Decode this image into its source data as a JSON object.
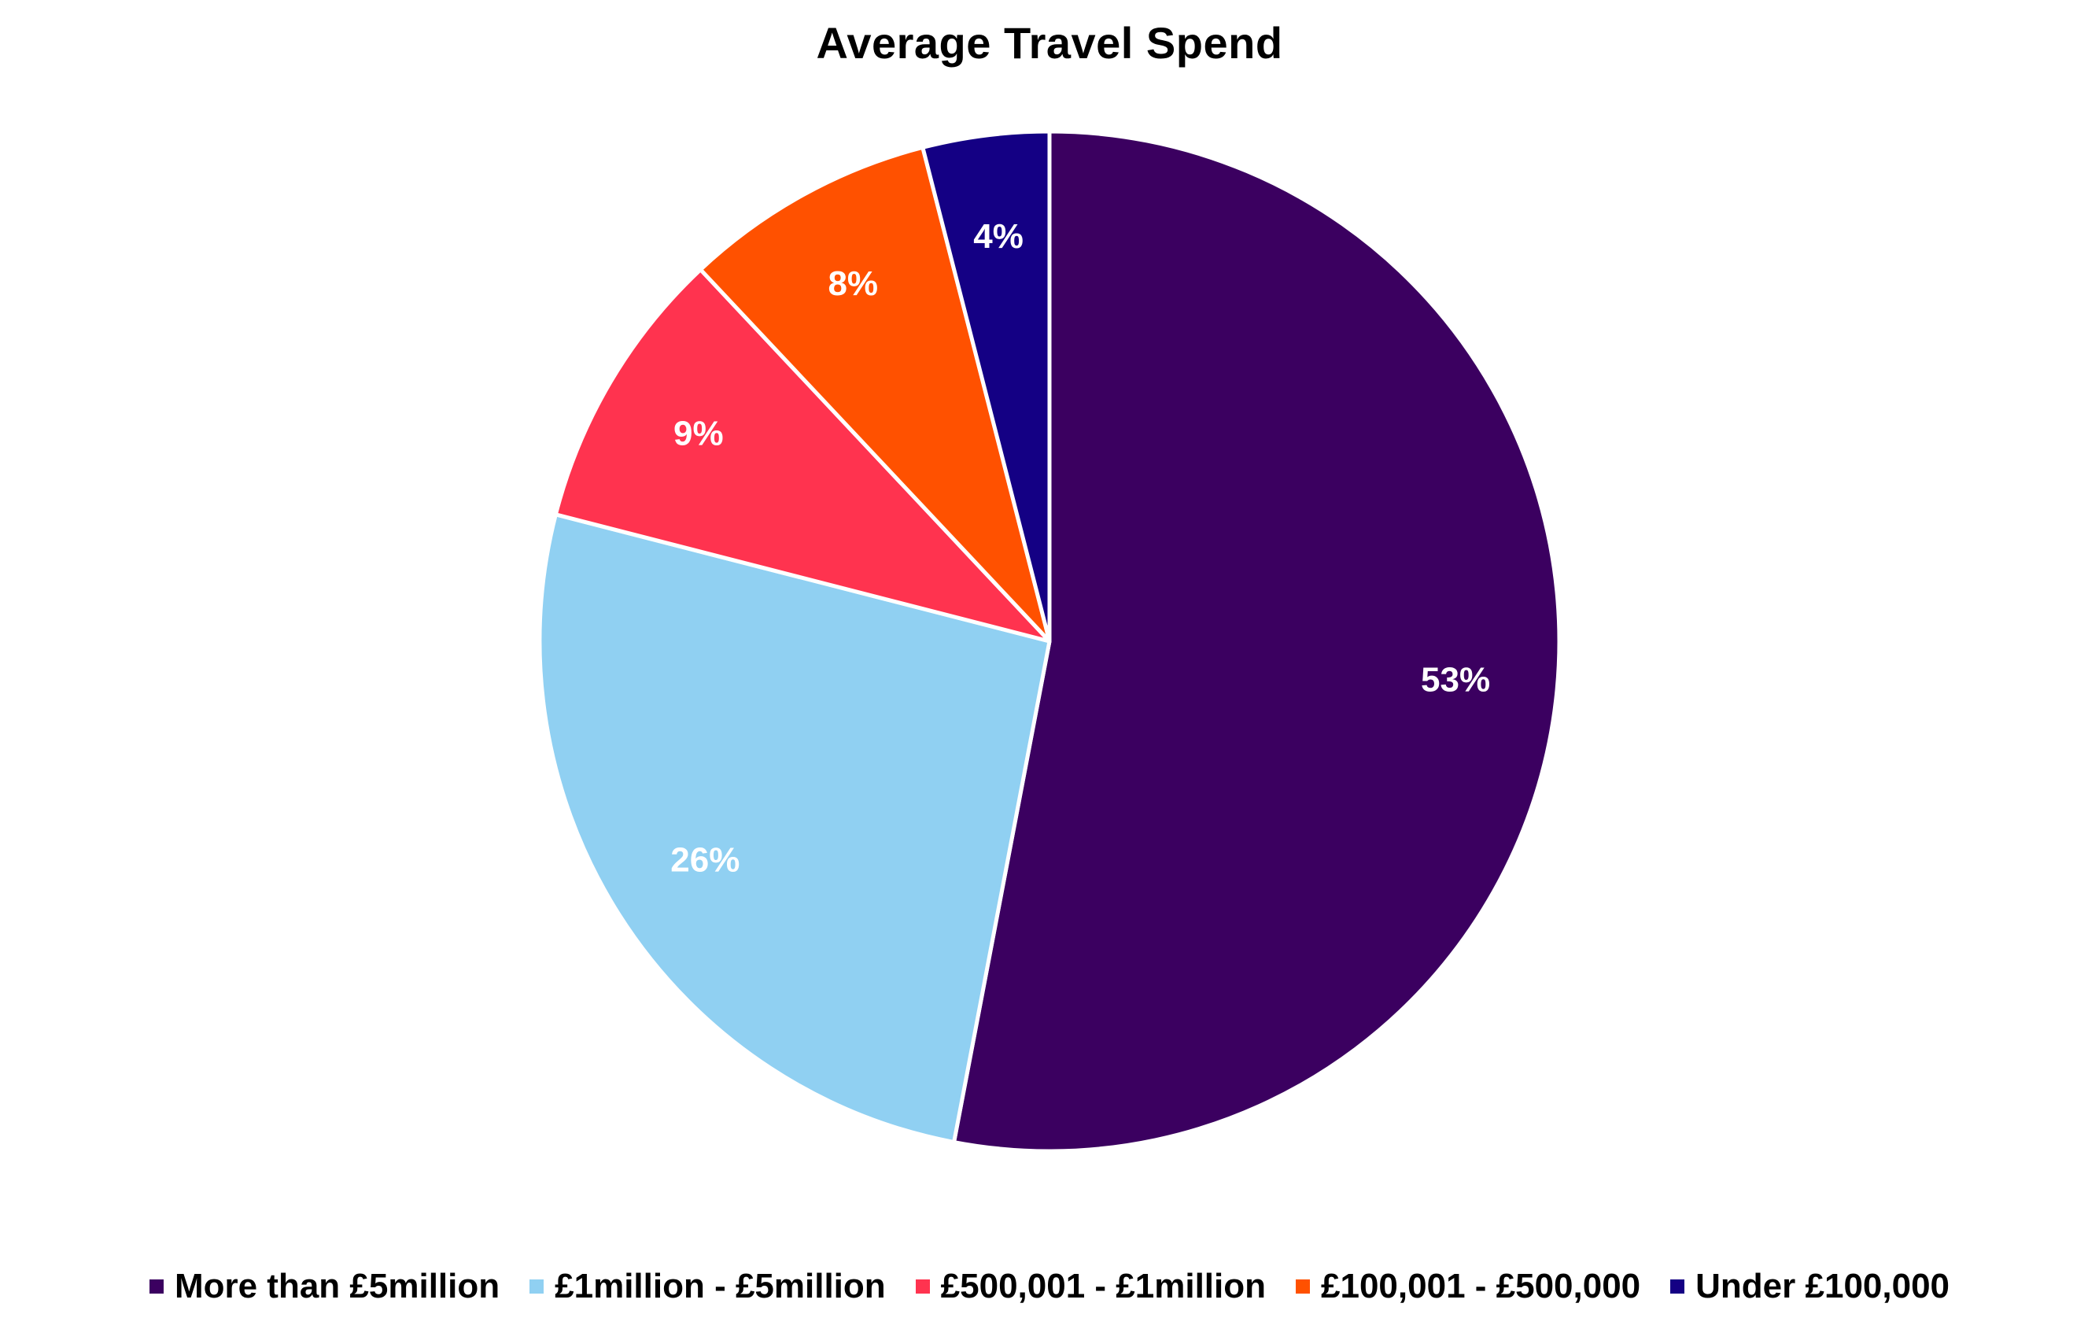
{
  "chart_data": {
    "type": "pie",
    "title": "Average Travel Spend",
    "legend_position": "bottom",
    "start_angle_deg": 0,
    "direction": "clockwise",
    "slices": [
      {
        "label": "More than £5million",
        "value": 53,
        "display": "53%",
        "color": "#3b0060"
      },
      {
        "label": "£1million - £5million",
        "value": 26,
        "display": "26%",
        "color": "#90d0f2"
      },
      {
        "label": "£500,001 - £1million",
        "value": 9,
        "display": "9%",
        "color": "#ff334f"
      },
      {
        "label": "£100,001 - £500,000",
        "value": 8,
        "display": "8%",
        "color": "#ff5100"
      },
      {
        "label": "Under £100,000",
        "value": 4,
        "display": "4%",
        "color": "#140084"
      }
    ]
  }
}
